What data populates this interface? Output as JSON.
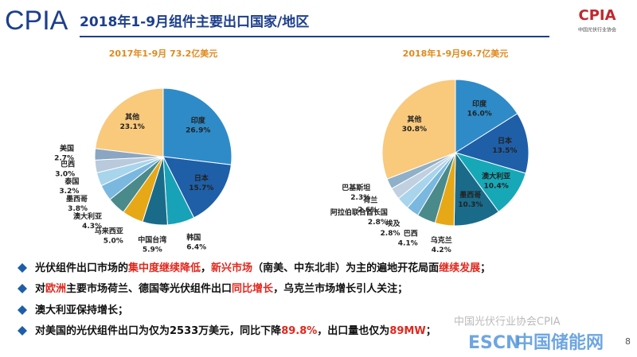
{
  "header": {
    "logo": "CPIA",
    "title": "2018年1-9月组件主要出口国家/地区",
    "corner_logo": "CPIA",
    "corner_org": "中国光伏行业协会"
  },
  "chart_data": [
    {
      "type": "pie",
      "title": "2017年1-9月 73.2亿美元",
      "categories": [
        "印度",
        "日本",
        "韩国",
        "中国台湾",
        "马来西亚",
        "澳大利亚",
        "墨西哥",
        "泰国",
        "巴西",
        "美国",
        "其他"
      ],
      "values": [
        26.9,
        15.7,
        6.4,
        5.9,
        5.0,
        4.3,
        3.8,
        3.2,
        3.0,
        2.7,
        23.1
      ],
      "value_labels": [
        "26.9%",
        "15.7%",
        "6.4%",
        "5.9%",
        "5.0%",
        "4.3%",
        "3.8%",
        "3.2%",
        "3.0%",
        "2.7%",
        "23.1%"
      ],
      "colors": [
        "#2e8bc8",
        "#1f5fa8",
        "#17a2b8",
        "#1a6b8a",
        "#e6a817",
        "#4a8a8a",
        "#7ab8e0",
        "#a8d4ec",
        "#b8cadb",
        "#8aa6c2",
        "#f9c97c"
      ]
    },
    {
      "type": "pie",
      "title": "2018年1-9月96.7亿美元",
      "categories": [
        "印度",
        "日本",
        "澳大利亚",
        "墨西哥",
        "乌克兰",
        "巴西",
        "埃及",
        "阿拉伯联合酋长国",
        "荷兰",
        "巴基斯坦",
        "其他"
      ],
      "values": [
        16.0,
        13.5,
        10.4,
        10.3,
        4.2,
        4.1,
        2.8,
        2.8,
        2.6,
        2.3,
        30.8
      ],
      "value_labels": [
        "16.0%",
        "13.5%",
        "10.4%",
        "10.3%",
        "4.2%",
        "4.1%",
        "2.8%",
        "2.8%",
        "2.6%",
        "2.3%",
        "30.8%"
      ],
      "colors": [
        "#2e8bc8",
        "#1f5fa8",
        "#17a8b8",
        "#1a6b8a",
        "#e6a817",
        "#4a8a8a",
        "#7ab8e0",
        "#a8d4ec",
        "#c0d0e0",
        "#8fb0c8",
        "#f9c97c"
      ]
    }
  ],
  "bullets": [
    [
      {
        "text": "光伏组件出口市场的"
      },
      {
        "text": "集中度继续降低",
        "highlight": true
      },
      {
        "text": "，"
      },
      {
        "text": "新兴市场",
        "highlight": true
      },
      {
        "text": "（南美、中东北非）为主的遍地开花局面"
      },
      {
        "text": "继续发展",
        "highlight": true
      },
      {
        "text": "；"
      }
    ],
    [
      {
        "text": "对"
      },
      {
        "text": "欧洲",
        "highlight": true
      },
      {
        "text": "主要市场荷兰、德国等光伏组件出口"
      },
      {
        "text": "同比增长",
        "highlight": true
      },
      {
        "text": "，乌克兰市场增长引人关注；"
      }
    ],
    [
      {
        "text": "澳大利亚保持增长；"
      }
    ],
    [
      {
        "text": "对美国的光伏组件出口为仅为2533万美元，同比下降"
      },
      {
        "text": "89.8%",
        "highlight": true
      },
      {
        "text": "，出口量也仅为"
      },
      {
        "text": "89MW",
        "highlight": true
      },
      {
        "text": "；"
      }
    ]
  ],
  "watermark": {
    "wechat": "中国光伏行业协会CPIA",
    "escn": "ESCN",
    "site": "中国储能网",
    "page": "8"
  }
}
